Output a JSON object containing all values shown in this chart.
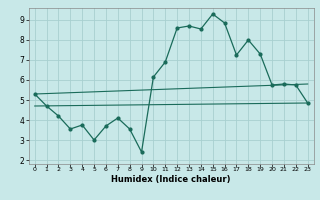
{
  "xlabel": "Humidex (Indice chaleur)",
  "xlim": [
    -0.5,
    23.5
  ],
  "ylim": [
    1.8,
    9.6
  ],
  "yticks": [
    2,
    3,
    4,
    5,
    6,
    7,
    8,
    9
  ],
  "xticks": [
    0,
    1,
    2,
    3,
    4,
    5,
    6,
    7,
    8,
    9,
    10,
    11,
    12,
    13,
    14,
    15,
    16,
    17,
    18,
    19,
    20,
    21,
    22,
    23
  ],
  "bg_color": "#c8e8e8",
  "line_color": "#1a6b5a",
  "grid_color": "#a8d0d0",
  "main_line": {
    "x": [
      0,
      1,
      2,
      3,
      4,
      5,
      6,
      7,
      8,
      9,
      10,
      11,
      12,
      13,
      14,
      15,
      16,
      17,
      18,
      19,
      20,
      21,
      22,
      23
    ],
    "y": [
      5.3,
      4.7,
      4.2,
      3.55,
      3.75,
      3.0,
      3.7,
      4.1,
      3.55,
      2.4,
      6.15,
      6.9,
      8.6,
      8.7,
      8.55,
      9.3,
      8.85,
      7.25,
      8.0,
      7.3,
      5.75,
      5.8,
      5.75,
      4.85
    ]
  },
  "upper_line": {
    "x": [
      0,
      23
    ],
    "y": [
      5.3,
      5.8
    ]
  },
  "lower_line": {
    "x": [
      0,
      23
    ],
    "y": [
      4.7,
      4.85
    ]
  }
}
